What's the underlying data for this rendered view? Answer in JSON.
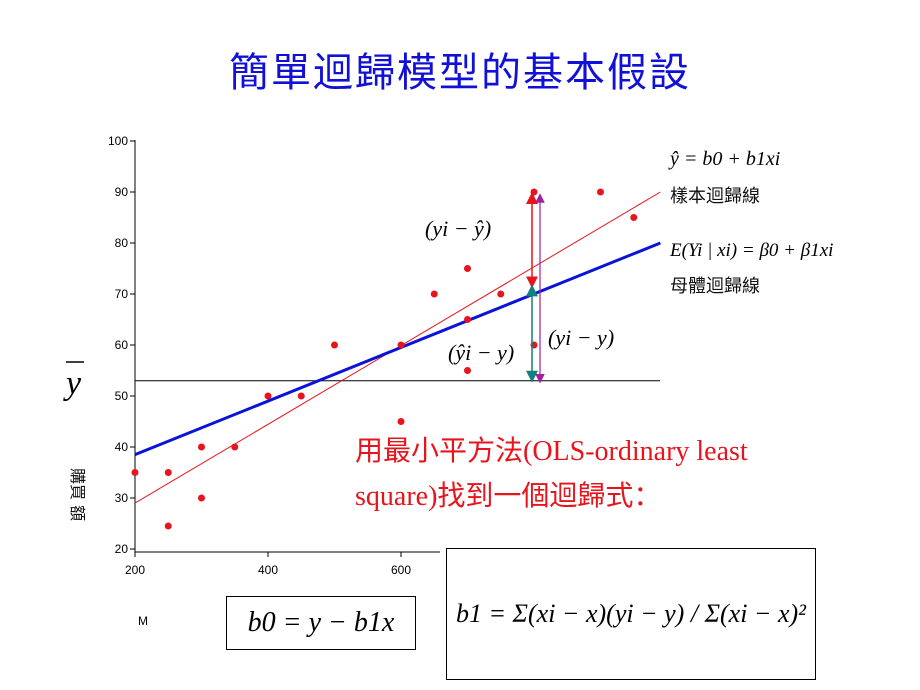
{
  "slide": {
    "title": "簡單迴歸模型的基本假設",
    "title_color": "#1010d8"
  },
  "chart_data": {
    "type": "scatter",
    "x_ticks": [
      200,
      400,
      600
    ],
    "y_ticks": [
      20,
      30,
      40,
      50,
      60,
      70,
      80,
      90,
      100
    ],
    "xlim": [
      200,
      1000
    ],
    "ylim": [
      19,
      100
    ],
    "xlabel": "M",
    "ylabel": "Y",
    "ylabel_rotated": "購買 額",
    "ybar_label": "y",
    "points": [
      {
        "x": 200,
        "y": 35
      },
      {
        "x": 250,
        "y": 35
      },
      {
        "x": 250,
        "y": 24.5
      },
      {
        "x": 300,
        "y": 40
      },
      {
        "x": 300,
        "y": 30
      },
      {
        "x": 350,
        "y": 40
      },
      {
        "x": 400,
        "y": 50
      },
      {
        "x": 450,
        "y": 50
      },
      {
        "x": 500,
        "y": 60
      },
      {
        "x": 600,
        "y": 60
      },
      {
        "x": 600,
        "y": 45
      },
      {
        "x": 650,
        "y": 70
      },
      {
        "x": 700,
        "y": 75
      },
      {
        "x": 700,
        "y": 65
      },
      {
        "x": 700,
        "y": 55
      },
      {
        "x": 750,
        "y": 70
      },
      {
        "x": 800,
        "y": 90
      },
      {
        "x": 800,
        "y": 60
      },
      {
        "x": 900,
        "y": 90
      },
      {
        "x": 950,
        "y": 85
      }
    ],
    "sample_line": {
      "x0": 200,
      "y0": 29,
      "x1": 990,
      "y1": 90,
      "color": "#e8141c"
    },
    "population_line": {
      "x0": 200,
      "y0": 38.5,
      "x1": 990,
      "y1": 80,
      "color": "#0a14d8"
    },
    "mean_y": 53,
    "point_color": "#e8141c",
    "highlight_x": 800,
    "highlight_yhat": 71.5,
    "highlight_y": 90,
    "labels": {
      "resid": "(yi − ŷ)",
      "explained": "(ŷi − y)",
      "total": "(yi − y)"
    }
  },
  "legend": {
    "sample_eq": "ŷ = b0 + b1xi",
    "sample_label": "樣本迴歸線",
    "pop_eq": "E(Yi | xi) = β0 + β1xi",
    "pop_label": "母體迴歸線"
  },
  "ols_text": {
    "line1": "用最小平方法(OLS-ordinary least",
    "line2": "square)找到一個迴歸式：",
    "color": "#e8141c"
  },
  "formulas": {
    "b0": "b0 = y − b1x",
    "b1": "b1 = Σ(xi − x)(yi − y) / Σ(xi − x)²"
  }
}
